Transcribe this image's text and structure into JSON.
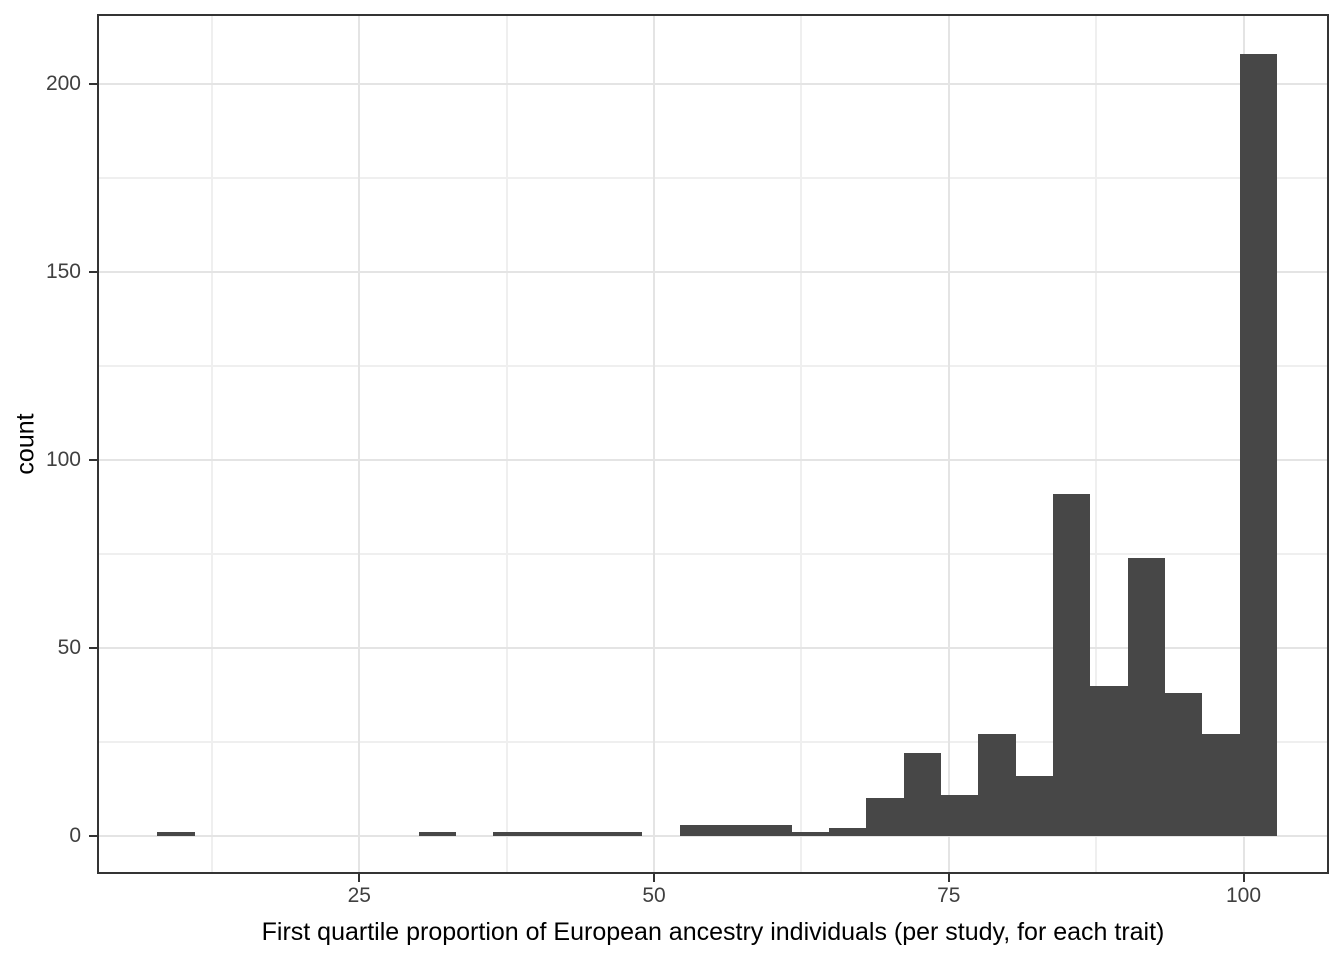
{
  "colors": {
    "background": "#ffffff",
    "bar": "#474747",
    "grid_major": "#e4e4e4",
    "grid_minor": "#efefef",
    "panel_border": "#343434",
    "tick_mark": "#333333",
    "tick_label": "#404040",
    "axis_title": "#000000"
  },
  "chart_data": {
    "type": "bar",
    "subtype": "histogram",
    "title": "",
    "xlabel": "First quartile proportion of European ancestry individuals (per study, for each trait)",
    "ylabel": "count",
    "grid": "on",
    "legend": "none",
    "bar_color": "#474747",
    "xlim": [
      2.75,
      107.25
    ],
    "ylim": [
      -10.1,
      218.6
    ],
    "x_major_ticks": [
      25,
      50,
      75,
      100
    ],
    "x_minor_gridlines": [
      12.5,
      37.5,
      62.5,
      87.5
    ],
    "y_major_ticks": [
      0,
      50,
      100,
      150,
      200
    ],
    "y_minor_gridlines": [
      25,
      75,
      125,
      175
    ],
    "approx_binwidth": 3.17,
    "bins": [
      {
        "x0": 7.87,
        "x1": 11.03,
        "count": 1
      },
      {
        "x0": 30.03,
        "x1": 33.2,
        "count": 1
      },
      {
        "x0": 36.36,
        "x1": 39.53,
        "count": 1
      },
      {
        "x0": 39.53,
        "x1": 42.69,
        "count": 1
      },
      {
        "x0": 42.69,
        "x1": 45.86,
        "count": 1
      },
      {
        "x0": 45.86,
        "x1": 49.02,
        "count": 1
      },
      {
        "x0": 52.19,
        "x1": 55.35,
        "count": 3
      },
      {
        "x0": 55.35,
        "x1": 58.52,
        "count": 3
      },
      {
        "x0": 58.52,
        "x1": 61.68,
        "count": 3
      },
      {
        "x0": 61.68,
        "x1": 64.85,
        "count": 1
      },
      {
        "x0": 64.85,
        "x1": 68.01,
        "count": 2
      },
      {
        "x0": 68.01,
        "x1": 71.18,
        "count": 10
      },
      {
        "x0": 71.18,
        "x1": 74.34,
        "count": 22
      },
      {
        "x0": 74.34,
        "x1": 77.51,
        "count": 11
      },
      {
        "x0": 77.51,
        "x1": 80.67,
        "count": 27
      },
      {
        "x0": 80.67,
        "x1": 83.84,
        "count": 16
      },
      {
        "x0": 83.84,
        "x1": 87.0,
        "count": 91
      },
      {
        "x0": 87.0,
        "x1": 90.17,
        "count": 40
      },
      {
        "x0": 90.17,
        "x1": 93.33,
        "count": 74
      },
      {
        "x0": 93.33,
        "x1": 96.5,
        "count": 38
      },
      {
        "x0": 96.5,
        "x1": 99.66,
        "count": 27
      },
      {
        "x0": 99.66,
        "x1": 102.83,
        "count": 208
      }
    ]
  }
}
